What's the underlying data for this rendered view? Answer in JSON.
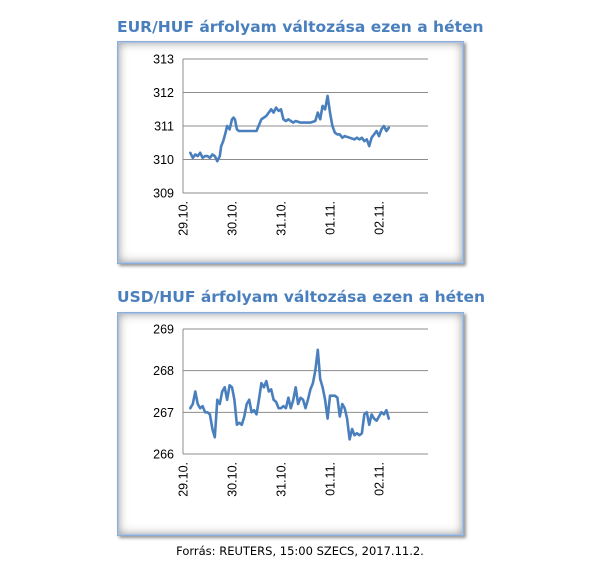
{
  "chart_data": [
    {
      "type": "line",
      "title": "EUR/HUF árfolyam változása ezen a héten",
      "categories": [
        "29.10.",
        "30.10.",
        "31.10.",
        "01.11.",
        "02.11."
      ],
      "ylim": [
        309,
        313
      ],
      "yticks": [
        "313",
        "312",
        "311",
        "310",
        "309"
      ],
      "grid": true,
      "color": "#4a7fbe",
      "series": [
        {
          "x": [
            0.15,
            0.2,
            0.25,
            0.3,
            0.35,
            0.4,
            0.45,
            0.5,
            0.55,
            0.6,
            0.65,
            0.7,
            0.75,
            0.78,
            0.82,
            0.86,
            0.9,
            0.95,
            1.0,
            1.03,
            1.06,
            1.1,
            1.14,
            1.2,
            1.25,
            1.3,
            1.4,
            1.5,
            1.6,
            1.7,
            1.8,
            1.85,
            1.9,
            1.95,
            2.0,
            2.05,
            2.1,
            2.15,
            2.2,
            2.25,
            2.3,
            2.4,
            2.5,
            2.6,
            2.7,
            2.75,
            2.8,
            2.85,
            2.9,
            2.95,
            3.0,
            3.05,
            3.1,
            3.15,
            3.2,
            3.25,
            3.3,
            3.4,
            3.5,
            3.55,
            3.6,
            3.65,
            3.7,
            3.75,
            3.8,
            3.85,
            3.9,
            3.95,
            4.0,
            4.05,
            4.1,
            4.15,
            4.2
          ],
          "values": [
            310.2,
            310.05,
            310.15,
            310.1,
            310.2,
            310.05,
            310.1,
            310.1,
            310.05,
            310.15,
            310.1,
            309.95,
            310.1,
            310.4,
            310.55,
            310.75,
            311.0,
            310.9,
            311.2,
            311.25,
            311.2,
            310.9,
            310.85,
            310.85,
            310.85,
            310.85,
            310.85,
            310.85,
            311.2,
            311.3,
            311.5,
            311.4,
            311.55,
            311.45,
            311.5,
            311.2,
            311.15,
            311.2,
            311.15,
            311.1,
            311.15,
            311.1,
            311.1,
            311.1,
            311.15,
            311.4,
            311.2,
            311.6,
            311.5,
            311.9,
            311.4,
            311.0,
            310.8,
            310.75,
            310.75,
            310.65,
            310.7,
            310.65,
            310.6,
            310.65,
            310.6,
            310.65,
            310.55,
            310.6,
            310.4,
            310.65,
            310.75,
            310.85,
            310.7,
            310.9,
            311.0,
            310.85,
            310.95
          ]
        }
      ]
    },
    {
      "type": "line",
      "title": "USD/HUF árfolyam változása ezen a héten",
      "categories": [
        "29.10.",
        "30.10.",
        "31.10.",
        "01.11.",
        "02.11."
      ],
      "ylim": [
        266,
        269
      ],
      "yticks": [
        "269",
        "268",
        "267",
        "266"
      ],
      "grid": true,
      "color": "#4a7fbe",
      "series": [
        {
          "x": [
            0.15,
            0.2,
            0.25,
            0.3,
            0.35,
            0.4,
            0.45,
            0.5,
            0.55,
            0.6,
            0.65,
            0.7,
            0.75,
            0.8,
            0.85,
            0.9,
            0.95,
            1.0,
            1.05,
            1.1,
            1.15,
            1.2,
            1.25,
            1.3,
            1.35,
            1.4,
            1.45,
            1.5,
            1.55,
            1.6,
            1.65,
            1.7,
            1.75,
            1.8,
            1.85,
            1.9,
            1.95,
            2.0,
            2.05,
            2.1,
            2.15,
            2.2,
            2.25,
            2.3,
            2.35,
            2.4,
            2.45,
            2.5,
            2.55,
            2.6,
            2.65,
            2.7,
            2.75,
            2.8,
            2.85,
            2.9,
            2.95,
            3.0,
            3.05,
            3.1,
            3.15,
            3.2,
            3.25,
            3.3,
            3.35,
            3.4,
            3.45,
            3.5,
            3.55,
            3.6,
            3.65,
            3.7,
            3.75,
            3.8,
            3.85,
            3.9,
            3.95,
            4.0,
            4.05,
            4.1,
            4.15,
            4.2
          ],
          "values": [
            267.1,
            267.2,
            267.5,
            267.2,
            267.1,
            267.15,
            267.0,
            267.0,
            266.95,
            266.6,
            266.4,
            267.3,
            267.2,
            267.5,
            267.6,
            267.3,
            267.65,
            267.6,
            267.3,
            266.7,
            266.75,
            266.7,
            266.9,
            267.2,
            267.3,
            267.0,
            267.05,
            266.95,
            267.3,
            267.7,
            267.6,
            267.75,
            267.5,
            267.55,
            267.3,
            267.25,
            267.1,
            267.1,
            267.15,
            267.1,
            267.35,
            267.1,
            267.3,
            267.6,
            267.2,
            267.35,
            267.3,
            267.1,
            267.3,
            267.55,
            267.7,
            268.0,
            268.5,
            267.8,
            267.6,
            267.3,
            266.85,
            267.4,
            267.4,
            267.4,
            267.35,
            266.9,
            267.2,
            267.1,
            266.85,
            266.35,
            266.6,
            266.45,
            266.5,
            266.45,
            266.5,
            266.95,
            267.0,
            266.7,
            266.95,
            266.85,
            266.8,
            266.9,
            267.0,
            266.95,
            267.05,
            266.85
          ]
        }
      ]
    }
  ],
  "footer": "Forrás: REUTERS, 15:00 SZECS, 2017.11.2."
}
